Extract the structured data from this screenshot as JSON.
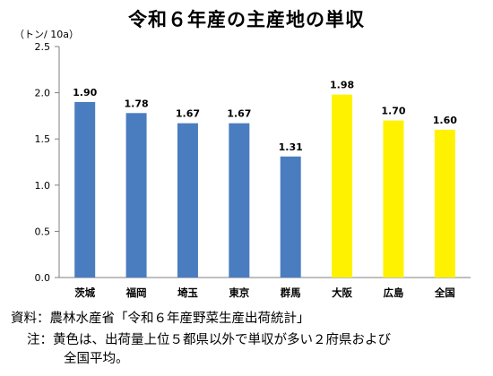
{
  "chart_data": {
    "type": "bar",
    "title": "令和６年産の主産地の単収",
    "ylabel": "（トン/ 10a）",
    "xlabel": "",
    "categories": [
      "茨城",
      "福岡",
      "埼玉",
      "東京",
      "群馬",
      "大阪",
      "広島",
      "全国"
    ],
    "values": [
      1.9,
      1.78,
      1.67,
      1.67,
      1.31,
      1.98,
      1.7,
      1.6
    ],
    "value_labels": [
      "1.90",
      "1.78",
      "1.67",
      "1.67",
      "1.31",
      "1.98",
      "1.70",
      "1.60"
    ],
    "colors": [
      "#4A7DC0",
      "#4A7DC0",
      "#4A7DC0",
      "#4A7DC0",
      "#4A7DC0",
      "#FFF200",
      "#FFF200",
      "#FFF200"
    ],
    "ylim": [
      0,
      2.5
    ],
    "yticks": [
      0.0,
      0.5,
      1.0,
      1.5,
      2.0,
      2.5
    ],
    "ytick_labels": [
      "0.0",
      "0.5",
      "1.0",
      "1.5",
      "2.0",
      "2.5"
    ],
    "grid": false
  },
  "notes": {
    "source": "資料：農林水産省「令和６年産野菜生産出荷統計」",
    "footnote_line1": "注：黄色は、出荷量上位５都県以外で単収が多い２府県および",
    "footnote_line2": "全国平均。"
  }
}
